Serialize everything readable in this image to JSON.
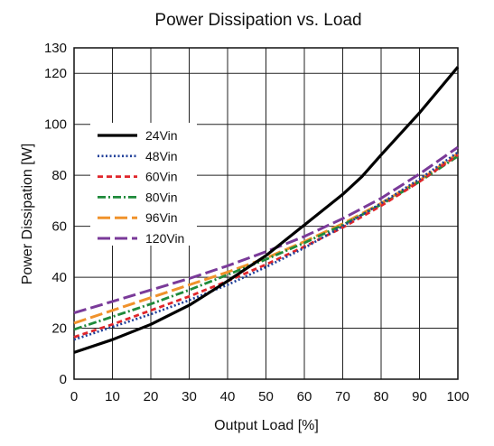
{
  "chart_data": {
    "type": "line",
    "title": "Power Dissipation vs. Load",
    "xlabel": "Output Load [%]",
    "ylabel": "Power Dissipation [W]",
    "xlim": [
      0,
      100
    ],
    "ylim": [
      0,
      130
    ],
    "x_ticks": [
      0,
      10,
      20,
      30,
      40,
      50,
      60,
      70,
      80,
      90,
      100
    ],
    "y_ticks": [
      0,
      20,
      40,
      60,
      80,
      100,
      120,
      130
    ],
    "grid": true,
    "legend_position": "left-middle",
    "series": [
      {
        "name": "24Vin",
        "color": "#000000",
        "dash": "solid",
        "x": [
          0,
          10,
          20,
          30,
          40,
          50,
          60,
          70,
          75,
          80,
          90,
          100
        ],
        "y": [
          10.5,
          15.5,
          21.5,
          29,
          38.5,
          48.5,
          60.5,
          72.5,
          79.5,
          88,
          104.5,
          122.5
        ]
      },
      {
        "name": "48Vin",
        "color": "#1f3f99",
        "dash": "dot",
        "x": [
          0,
          10,
          20,
          30,
          40,
          50,
          60,
          70,
          80,
          90,
          100
        ],
        "y": [
          15.5,
          20.5,
          25.5,
          31,
          37,
          44,
          51.5,
          60,
          69,
          78.5,
          89
        ]
      },
      {
        "name": "60Vin",
        "color": "#e0262b",
        "dash": "short-dash",
        "x": [
          0,
          10,
          20,
          30,
          40,
          50,
          60,
          70,
          80,
          90,
          100
        ],
        "y": [
          16.5,
          21.5,
          27,
          32.5,
          38.5,
          45,
          52,
          59.5,
          68,
          77.5,
          88
        ]
      },
      {
        "name": "80Vin",
        "color": "#1f8a3a",
        "dash": "dash-dot",
        "x": [
          0,
          10,
          20,
          30,
          40,
          50,
          60,
          70,
          80,
          90,
          100
        ],
        "y": [
          19.5,
          24.5,
          29.5,
          35,
          41,
          47,
          53.5,
          60.5,
          68.5,
          77.5,
          87.5
        ]
      },
      {
        "name": "96Vin",
        "color": "#f0922b",
        "dash": "long-dash",
        "x": [
          0,
          10,
          20,
          30,
          40,
          50,
          60,
          70,
          80,
          90,
          100
        ],
        "y": [
          22,
          27,
          32,
          37,
          42,
          47.5,
          54,
          61,
          69,
          78,
          88.5
        ]
      },
      {
        "name": "120Vin",
        "color": "#7a3a99",
        "dash": "long-dash",
        "x": [
          0,
          10,
          20,
          30,
          40,
          50,
          60,
          70,
          80,
          90,
          100
        ],
        "y": [
          26,
          30.5,
          35,
          39.5,
          44.5,
          50,
          56,
          63,
          71,
          80.5,
          91
        ]
      }
    ]
  }
}
